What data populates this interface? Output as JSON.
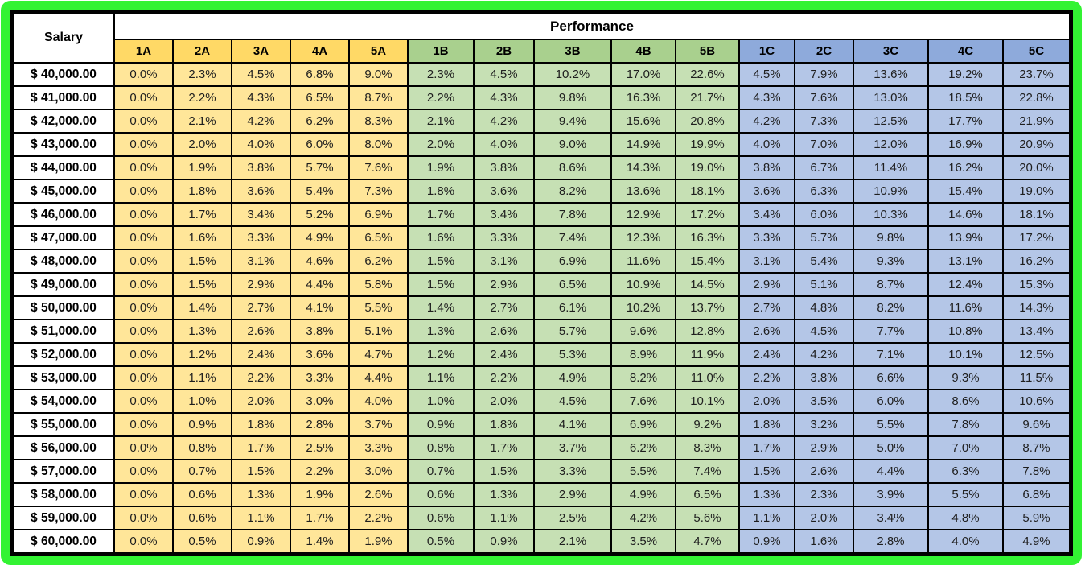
{
  "frame_color": "#33f333",
  "chart_data": {
    "type": "table",
    "title": "Performance",
    "corner_label": "Salary",
    "columns": [
      "1A",
      "2A",
      "3A",
      "4A",
      "5A",
      "1B",
      "2B",
      "3B",
      "4B",
      "5B",
      "1C",
      "2C",
      "3C",
      "4C",
      "5C"
    ],
    "column_groups": [
      {
        "name": "A",
        "header_bg": "#FFD966",
        "body_bg": "#FFE699"
      },
      {
        "name": "B",
        "header_bg": "#A9D08E",
        "body_bg": "#C6E0B4"
      },
      {
        "name": "C",
        "header_bg": "#8EAADB",
        "body_bg": "#B4C6E7"
      }
    ],
    "salaries": [
      "$ 40,000.00",
      "$ 41,000.00",
      "$ 42,000.00",
      "$ 43,000.00",
      "$ 44,000.00",
      "$ 45,000.00",
      "$ 46,000.00",
      "$ 47,000.00",
      "$ 48,000.00",
      "$ 49,000.00",
      "$ 50,000.00",
      "$ 51,000.00",
      "$ 52,000.00",
      "$ 53,000.00",
      "$ 54,000.00",
      "$ 55,000.00",
      "$ 56,000.00",
      "$ 57,000.00",
      "$ 58,000.00",
      "$ 59,000.00",
      "$ 60,000.00"
    ],
    "rows": [
      [
        "0.0%",
        "2.3%",
        "4.5%",
        "6.8%",
        "9.0%",
        "2.3%",
        "4.5%",
        "10.2%",
        "17.0%",
        "22.6%",
        "4.5%",
        "7.9%",
        "13.6%",
        "19.2%",
        "23.7%"
      ],
      [
        "0.0%",
        "2.2%",
        "4.3%",
        "6.5%",
        "8.7%",
        "2.2%",
        "4.3%",
        "9.8%",
        "16.3%",
        "21.7%",
        "4.3%",
        "7.6%",
        "13.0%",
        "18.5%",
        "22.8%"
      ],
      [
        "0.0%",
        "2.1%",
        "4.2%",
        "6.2%",
        "8.3%",
        "2.1%",
        "4.2%",
        "9.4%",
        "15.6%",
        "20.8%",
        "4.2%",
        "7.3%",
        "12.5%",
        "17.7%",
        "21.9%"
      ],
      [
        "0.0%",
        "2.0%",
        "4.0%",
        "6.0%",
        "8.0%",
        "2.0%",
        "4.0%",
        "9.0%",
        "14.9%",
        "19.9%",
        "4.0%",
        "7.0%",
        "12.0%",
        "16.9%",
        "20.9%"
      ],
      [
        "0.0%",
        "1.9%",
        "3.8%",
        "5.7%",
        "7.6%",
        "1.9%",
        "3.8%",
        "8.6%",
        "14.3%",
        "19.0%",
        "3.8%",
        "6.7%",
        "11.4%",
        "16.2%",
        "20.0%"
      ],
      [
        "0.0%",
        "1.8%",
        "3.6%",
        "5.4%",
        "7.3%",
        "1.8%",
        "3.6%",
        "8.2%",
        "13.6%",
        "18.1%",
        "3.6%",
        "6.3%",
        "10.9%",
        "15.4%",
        "19.0%"
      ],
      [
        "0.0%",
        "1.7%",
        "3.4%",
        "5.2%",
        "6.9%",
        "1.7%",
        "3.4%",
        "7.8%",
        "12.9%",
        "17.2%",
        "3.4%",
        "6.0%",
        "10.3%",
        "14.6%",
        "18.1%"
      ],
      [
        "0.0%",
        "1.6%",
        "3.3%",
        "4.9%",
        "6.5%",
        "1.6%",
        "3.3%",
        "7.4%",
        "12.3%",
        "16.3%",
        "3.3%",
        "5.7%",
        "9.8%",
        "13.9%",
        "17.2%"
      ],
      [
        "0.0%",
        "1.5%",
        "3.1%",
        "4.6%",
        "6.2%",
        "1.5%",
        "3.1%",
        "6.9%",
        "11.6%",
        "15.4%",
        "3.1%",
        "5.4%",
        "9.3%",
        "13.1%",
        "16.2%"
      ],
      [
        "0.0%",
        "1.5%",
        "2.9%",
        "4.4%",
        "5.8%",
        "1.5%",
        "2.9%",
        "6.5%",
        "10.9%",
        "14.5%",
        "2.9%",
        "5.1%",
        "8.7%",
        "12.4%",
        "15.3%"
      ],
      [
        "0.0%",
        "1.4%",
        "2.7%",
        "4.1%",
        "5.5%",
        "1.4%",
        "2.7%",
        "6.1%",
        "10.2%",
        "13.7%",
        "2.7%",
        "4.8%",
        "8.2%",
        "11.6%",
        "14.3%"
      ],
      [
        "0.0%",
        "1.3%",
        "2.6%",
        "3.8%",
        "5.1%",
        "1.3%",
        "2.6%",
        "5.7%",
        "9.6%",
        "12.8%",
        "2.6%",
        "4.5%",
        "7.7%",
        "10.8%",
        "13.4%"
      ],
      [
        "0.0%",
        "1.2%",
        "2.4%",
        "3.6%",
        "4.7%",
        "1.2%",
        "2.4%",
        "5.3%",
        "8.9%",
        "11.9%",
        "2.4%",
        "4.2%",
        "7.1%",
        "10.1%",
        "12.5%"
      ],
      [
        "0.0%",
        "1.1%",
        "2.2%",
        "3.3%",
        "4.4%",
        "1.1%",
        "2.2%",
        "4.9%",
        "8.2%",
        "11.0%",
        "2.2%",
        "3.8%",
        "6.6%",
        "9.3%",
        "11.5%"
      ],
      [
        "0.0%",
        "1.0%",
        "2.0%",
        "3.0%",
        "4.0%",
        "1.0%",
        "2.0%",
        "4.5%",
        "7.6%",
        "10.1%",
        "2.0%",
        "3.5%",
        "6.0%",
        "8.6%",
        "10.6%"
      ],
      [
        "0.0%",
        "0.9%",
        "1.8%",
        "2.8%",
        "3.7%",
        "0.9%",
        "1.8%",
        "4.1%",
        "6.9%",
        "9.2%",
        "1.8%",
        "3.2%",
        "5.5%",
        "7.8%",
        "9.6%"
      ],
      [
        "0.0%",
        "0.8%",
        "1.7%",
        "2.5%",
        "3.3%",
        "0.8%",
        "1.7%",
        "3.7%",
        "6.2%",
        "8.3%",
        "1.7%",
        "2.9%",
        "5.0%",
        "7.0%",
        "8.7%"
      ],
      [
        "0.0%",
        "0.7%",
        "1.5%",
        "2.2%",
        "3.0%",
        "0.7%",
        "1.5%",
        "3.3%",
        "5.5%",
        "7.4%",
        "1.5%",
        "2.6%",
        "4.4%",
        "6.3%",
        "7.8%"
      ],
      [
        "0.0%",
        "0.6%",
        "1.3%",
        "1.9%",
        "2.6%",
        "0.6%",
        "1.3%",
        "2.9%",
        "4.9%",
        "6.5%",
        "1.3%",
        "2.3%",
        "3.9%",
        "5.5%",
        "6.8%"
      ],
      [
        "0.0%",
        "0.6%",
        "1.1%",
        "1.7%",
        "2.2%",
        "0.6%",
        "1.1%",
        "2.5%",
        "4.2%",
        "5.6%",
        "1.1%",
        "2.0%",
        "3.4%",
        "4.8%",
        "5.9%"
      ],
      [
        "0.0%",
        "0.5%",
        "0.9%",
        "1.4%",
        "1.9%",
        "0.5%",
        "0.9%",
        "2.1%",
        "3.5%",
        "4.7%",
        "0.9%",
        "1.6%",
        "2.8%",
        "4.0%",
        "4.9%"
      ]
    ]
  }
}
